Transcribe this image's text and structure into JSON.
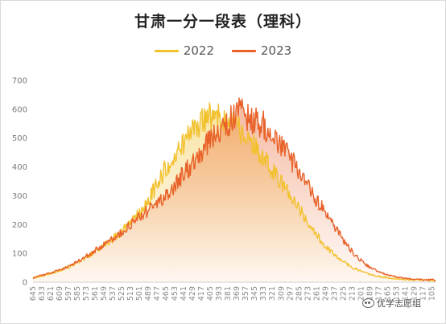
{
  "chart_data": {
    "type": "line",
    "title": "甘肃一分一段表（理科）",
    "xlabel": "",
    "ylabel": "",
    "ylim": [
      0,
      700
    ],
    "y_ticks": [
      0,
      100,
      200,
      300,
      400,
      500,
      600,
      700
    ],
    "x_range": [
      645,
      100
    ],
    "x_step": 12,
    "x_ticks": [
      645,
      633,
      621,
      609,
      597,
      585,
      573,
      561,
      549,
      537,
      525,
      513,
      501,
      489,
      477,
      465,
      453,
      441,
      429,
      417,
      405,
      393,
      381,
      369,
      357,
      345,
      333,
      321,
      309,
      297,
      285,
      273,
      261,
      249,
      237,
      225,
      213,
      201,
      189,
      177,
      165,
      153,
      141,
      129,
      117,
      105
    ],
    "grid": false,
    "legend_position": "top",
    "series": [
      {
        "name": "2022",
        "color": "#f2c12e",
        "points": [
          [
            645,
            15
          ],
          [
            633,
            22
          ],
          [
            621,
            30
          ],
          [
            609,
            40
          ],
          [
            597,
            52
          ],
          [
            585,
            68
          ],
          [
            573,
            85
          ],
          [
            561,
            105
          ],
          [
            549,
            128
          ],
          [
            537,
            150
          ],
          [
            525,
            175
          ],
          [
            513,
            205
          ],
          [
            501,
            240
          ],
          [
            489,
            285
          ],
          [
            477,
            340
          ],
          [
            465,
            395
          ],
          [
            453,
            440
          ],
          [
            441,
            480
          ],
          [
            429,
            520
          ],
          [
            417,
            555
          ],
          [
            405,
            575
          ],
          [
            393,
            570
          ],
          [
            381,
            555
          ],
          [
            369,
            535
          ],
          [
            357,
            505
          ],
          [
            345,
            470
          ],
          [
            333,
            430
          ],
          [
            321,
            385
          ],
          [
            309,
            345
          ],
          [
            297,
            300
          ],
          [
            285,
            255
          ],
          [
            273,
            210
          ],
          [
            261,
            165
          ],
          [
            249,
            125
          ],
          [
            237,
            95
          ],
          [
            225,
            70
          ],
          [
            213,
            52
          ],
          [
            201,
            38
          ],
          [
            189,
            27
          ],
          [
            177,
            20
          ],
          [
            165,
            15
          ],
          [
            153,
            12
          ],
          [
            141,
            10
          ],
          [
            129,
            8
          ],
          [
            117,
            7
          ],
          [
            105,
            6
          ],
          [
            100,
            6
          ]
        ]
      },
      {
        "name": "2023",
        "color": "#e8622a",
        "points": [
          [
            645,
            15
          ],
          [
            633,
            24
          ],
          [
            621,
            32
          ],
          [
            609,
            42
          ],
          [
            597,
            55
          ],
          [
            585,
            70
          ],
          [
            573,
            90
          ],
          [
            561,
            110
          ],
          [
            549,
            130
          ],
          [
            537,
            152
          ],
          [
            525,
            172
          ],
          [
            513,
            198
          ],
          [
            501,
            225
          ],
          [
            489,
            250
          ],
          [
            477,
            275
          ],
          [
            465,
            300
          ],
          [
            453,
            335
          ],
          [
            441,
            375
          ],
          [
            429,
            410
          ],
          [
            417,
            455
          ],
          [
            405,
            495
          ],
          [
            393,
            530
          ],
          [
            381,
            555
          ],
          [
            369,
            580
          ],
          [
            363,
            600
          ],
          [
            357,
            575
          ],
          [
            345,
            560
          ],
          [
            333,
            545
          ],
          [
            321,
            500
          ],
          [
            309,
            470
          ],
          [
            297,
            430
          ],
          [
            285,
            385
          ],
          [
            273,
            330
          ],
          [
            261,
            285
          ],
          [
            249,
            245
          ],
          [
            237,
            195
          ],
          [
            225,
            145
          ],
          [
            213,
            105
          ],
          [
            201,
            75
          ],
          [
            189,
            52
          ],
          [
            177,
            36
          ],
          [
            165,
            25
          ],
          [
            153,
            18
          ],
          [
            141,
            14
          ],
          [
            129,
            11
          ],
          [
            117,
            9
          ],
          [
            105,
            8
          ],
          [
            100,
            7
          ]
        ]
      }
    ]
  },
  "watermark": {
    "text": "优学志愿组"
  }
}
